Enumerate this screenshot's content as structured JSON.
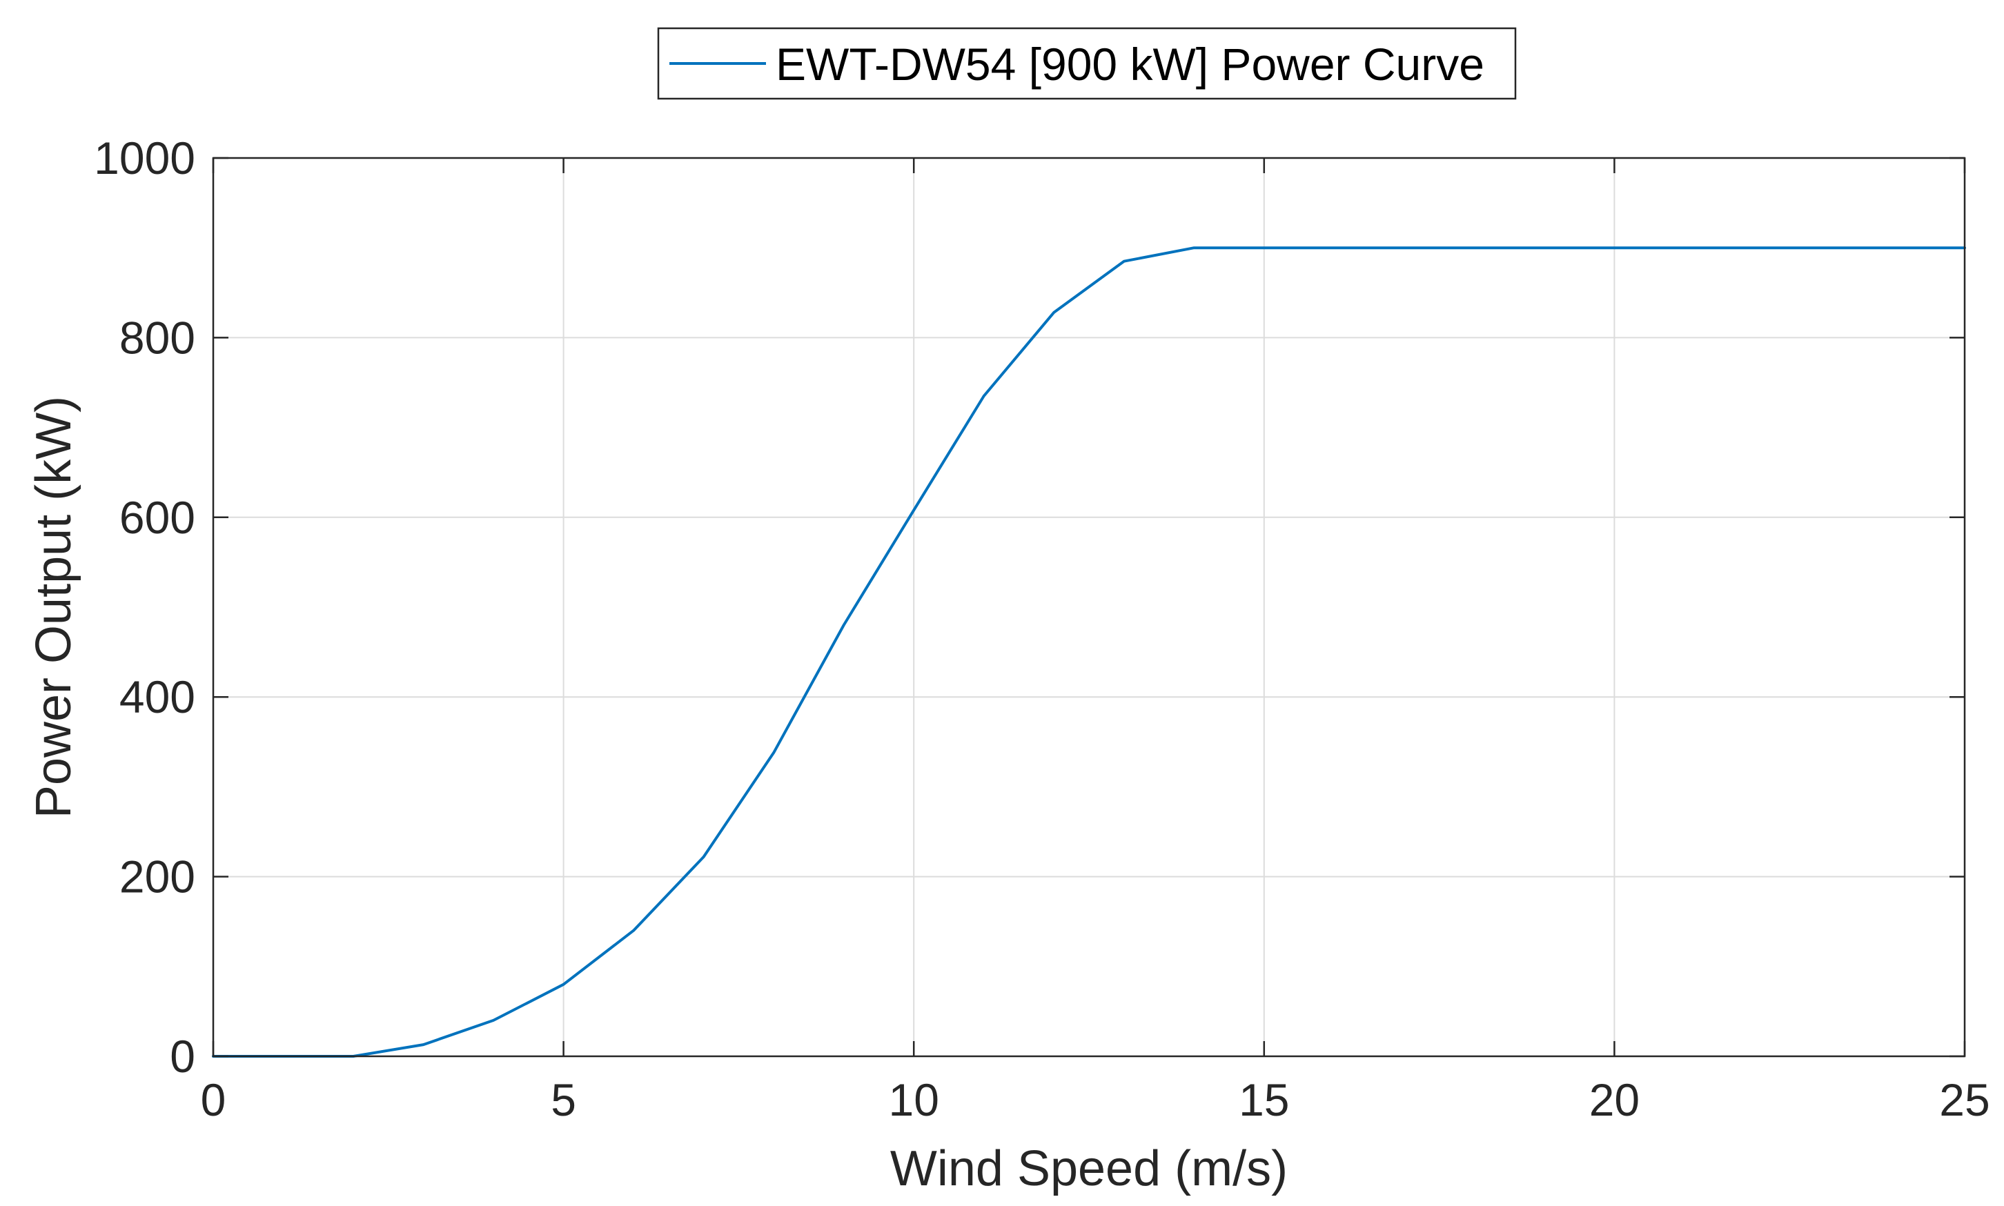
{
  "chart_data": {
    "type": "line",
    "title": "",
    "xlabel": "Wind Speed (m/s)",
    "ylabel": "Power Output (kW)",
    "xlim": [
      0,
      25
    ],
    "ylim": [
      0,
      1000
    ],
    "xticks": [
      0,
      5,
      10,
      15,
      20,
      25
    ],
    "yticks": [
      0,
      200,
      400,
      600,
      800,
      1000
    ],
    "grid": true,
    "legend_position": "top-center, outside plot area",
    "series": [
      {
        "name": "EWT-DW54 [900 kW] Power Curve",
        "color": "#0072BD",
        "x": [
          0,
          1,
          2,
          3,
          4,
          5,
          6,
          7,
          8,
          9,
          10,
          11,
          12,
          13,
          14,
          15,
          16,
          17,
          18,
          19,
          20,
          21,
          22,
          23,
          24,
          25
        ],
        "y": [
          0,
          0,
          0,
          13,
          40,
          80,
          140,
          222,
          338,
          480,
          608,
          735,
          828,
          885,
          900,
          900,
          900,
          900,
          900,
          900,
          900,
          900,
          900,
          900,
          900,
          900
        ]
      }
    ]
  }
}
